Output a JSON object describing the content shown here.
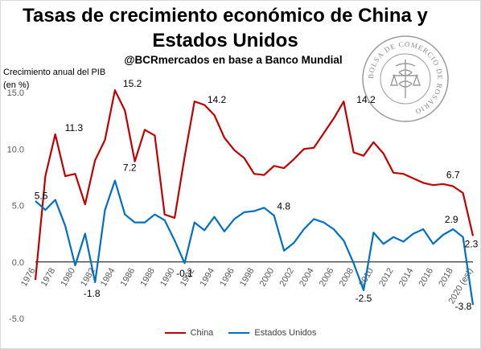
{
  "title": "Tasas de crecimiento económico de China y Estados Unidos",
  "subtitle": "@BCRmercados en base a Banco Mundial",
  "ylabel": "Crecimiento anual del PIB (en %)",
  "logo": {
    "name": "seal-logo",
    "text": "BOLSA DE COMERCIO DE ROSARIO"
  },
  "colors": {
    "china": "#c00000",
    "usa": "#0070c0"
  },
  "legend": {
    "placement": "bottom"
  },
  "chart_data": {
    "type": "line",
    "title": "Tasas de crecimiento económico de China y Estados Unidos",
    "subtitle": "@BCRmercados en base a Banco Mundial",
    "xlabel": "",
    "ylabel": "Crecimiento anual del PIB (en %)",
    "ylim": [
      -5.0,
      15.0
    ],
    "yticks": [
      "-5.0",
      "0.0",
      "5.0",
      "10.0",
      "15.0"
    ],
    "ytick_values": [
      -5,
      0,
      5,
      10,
      15
    ],
    "x": [
      "1976",
      "1977",
      "1978",
      "1979",
      "1980",
      "1981",
      "1982",
      "1983",
      "1984",
      "1985",
      "1986",
      "1987",
      "1988",
      "1989",
      "1990",
      "1991",
      "1992",
      "1993",
      "1994",
      "1995",
      "1996",
      "1997",
      "1998",
      "1999",
      "2000",
      "2001",
      "2002",
      "2003",
      "2004",
      "2005",
      "2006",
      "2007",
      "2008",
      "2009",
      "2010",
      "2011",
      "2012",
      "2013",
      "2014",
      "2015",
      "2016",
      "2017",
      "2018",
      "2019",
      "2020 (est)"
    ],
    "xtick_labels": [
      "1976",
      "1978",
      "1980",
      "1982",
      "1984",
      "1986",
      "1988",
      "1990",
      "1992",
      "1994",
      "1996",
      "1998",
      "2000",
      "2002",
      "2004",
      "2006",
      "2008",
      "2010",
      "2012",
      "2014",
      "2016",
      "2018",
      "2020 (est)"
    ],
    "grid": false,
    "legend": "bottom",
    "series": [
      {
        "name": "China",
        "color": "#c00000",
        "values": [
          -1.6,
          7.6,
          11.3,
          7.6,
          7.8,
          5.1,
          9.0,
          10.8,
          15.2,
          13.4,
          8.9,
          11.7,
          11.2,
          4.2,
          3.9,
          9.3,
          14.2,
          13.9,
          13.0,
          11.0,
          9.9,
          9.2,
          7.8,
          7.7,
          8.5,
          8.3,
          9.1,
          10.0,
          10.1,
          11.4,
          12.7,
          14.2,
          9.7,
          9.4,
          10.6,
          9.6,
          7.9,
          7.8,
          7.4,
          7.0,
          6.8,
          6.9,
          6.7,
          6.1,
          2.3
        ]
      },
      {
        "name": "Estados Unidos",
        "color": "#0070c0",
        "values": [
          5.4,
          4.6,
          5.5,
          3.2,
          -0.3,
          2.5,
          -1.8,
          4.6,
          7.2,
          4.2,
          3.5,
          3.5,
          4.2,
          3.7,
          1.9,
          -0.1,
          3.5,
          2.8,
          4.0,
          2.7,
          3.8,
          4.4,
          4.5,
          4.8,
          4.1,
          1.0,
          1.7,
          2.9,
          3.8,
          3.5,
          2.9,
          1.9,
          -0.1,
          -2.5,
          2.6,
          1.6,
          2.2,
          1.8,
          2.5,
          2.9,
          1.6,
          2.4,
          2.9,
          2.2,
          -3.8
        ]
      }
    ],
    "data_labels": [
      {
        "series": "China",
        "x": "1978",
        "text": "11.3"
      },
      {
        "series": "China",
        "x": "1984",
        "text": "15.2"
      },
      {
        "series": "China",
        "x": "1992",
        "text": "14.2"
      },
      {
        "series": "China",
        "x": "2007",
        "text": "14.2"
      },
      {
        "series": "China",
        "x": "2018",
        "text": "6.7"
      },
      {
        "series": "China",
        "x": "2020 (est)",
        "text": "2.3"
      },
      {
        "series": "Estados Unidos",
        "x": "1978",
        "text": "5.5"
      },
      {
        "series": "Estados Unidos",
        "x": "1982",
        "text": "-1.8"
      },
      {
        "series": "Estados Unidos",
        "x": "1984",
        "text": "7.2"
      },
      {
        "series": "Estados Unidos",
        "x": "1991",
        "text": "-0.1"
      },
      {
        "series": "Estados Unidos",
        "x": "1999",
        "text": "4.8"
      },
      {
        "series": "Estados Unidos",
        "x": "2009",
        "text": "-2.5"
      },
      {
        "series": "Estados Unidos",
        "x": "2018",
        "text": "2.9"
      },
      {
        "series": "Estados Unidos",
        "x": "2020 (est)",
        "text": "-3.8"
      }
    ]
  }
}
